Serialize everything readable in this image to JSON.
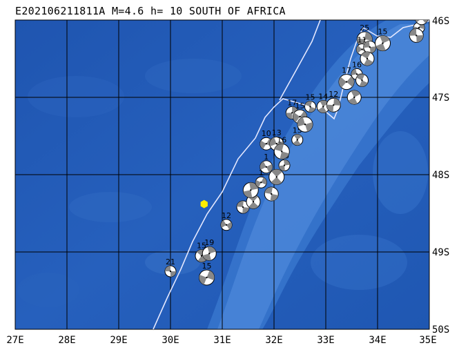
{
  "title": "E202106211811A  M=4.6  h= 10 SOUTH OF AFRICA",
  "colors": {
    "ocean_deep": "#1d4fa8",
    "ocean_mid": "#2a62c0",
    "ocean_shallow": "#4a86d8",
    "grid": "#000000",
    "plate_boundary": "#e8e8ff",
    "epicenter": "#ffee00",
    "beachball_fill": "#888888"
  },
  "axes": {
    "x_ticks": [
      "27E",
      "28E",
      "29E",
      "30E",
      "31E",
      "32E",
      "33E",
      "34E",
      "35E"
    ],
    "y_ticks": [
      "46S",
      "47S",
      "48S",
      "49S",
      "50S"
    ]
  },
  "epicenter": {
    "lon": 30.65,
    "lat": -48.38,
    "icon": "yellow-hexagon"
  },
  "mechanisms": [
    {
      "lon": 30.0,
      "lat": -49.25,
      "label": "21"
    },
    {
      "lon": 30.6,
      "lat": -49.05,
      "label": "15"
    },
    {
      "lon": 30.75,
      "lat": -49.02,
      "label": "19"
    },
    {
      "lon": 30.7,
      "lat": -49.33,
      "label": "15"
    },
    {
      "lon": 31.08,
      "lat": -48.65,
      "label": "12"
    },
    {
      "lon": 31.4,
      "lat": -48.42,
      "label": ""
    },
    {
      "lon": 31.6,
      "lat": -48.35,
      "label": ""
    },
    {
      "lon": 31.55,
      "lat": -48.2,
      "label": ""
    },
    {
      "lon": 31.75,
      "lat": -48.1,
      "label": "1"
    },
    {
      "lon": 31.85,
      "lat": -47.9,
      "label": "1"
    },
    {
      "lon": 31.95,
      "lat": -48.25,
      "label": ""
    },
    {
      "lon": 32.05,
      "lat": -48.03,
      "label": ""
    },
    {
      "lon": 32.2,
      "lat": -47.88,
      "label": "10"
    },
    {
      "lon": 31.85,
      "lat": -47.6,
      "label": "10"
    },
    {
      "lon": 32.05,
      "lat": -47.6,
      "label": "13"
    },
    {
      "lon": 32.15,
      "lat": -47.7,
      "label": "16"
    },
    {
      "lon": 32.45,
      "lat": -47.55,
      "label": "15"
    },
    {
      "lon": 32.35,
      "lat": -47.2,
      "label": "17"
    },
    {
      "lon": 32.5,
      "lat": -47.25,
      "label": "15"
    },
    {
      "lon": 32.6,
      "lat": -47.35,
      "label": ""
    },
    {
      "lon": 32.7,
      "lat": -47.12,
      "label": "15"
    },
    {
      "lon": 32.95,
      "lat": -47.12,
      "label": "14"
    },
    {
      "lon": 33.15,
      "lat": -47.1,
      "label": "12"
    },
    {
      "lon": 33.4,
      "lat": -46.8,
      "label": "17"
    },
    {
      "lon": 33.6,
      "lat": -46.7,
      "label": "16"
    },
    {
      "lon": 33.7,
      "lat": -46.78,
      "label": ""
    },
    {
      "lon": 33.55,
      "lat": -47.0,
      "label": ""
    },
    {
      "lon": 33.75,
      "lat": -46.25,
      "label": "25"
    },
    {
      "lon": 33.7,
      "lat": -46.38,
      "label": "11"
    },
    {
      "lon": 33.85,
      "lat": -46.35,
      "label": ""
    },
    {
      "lon": 33.8,
      "lat": -46.5,
      "label": ""
    },
    {
      "lon": 34.1,
      "lat": -46.3,
      "label": "15"
    },
    {
      "lon": 34.8,
      "lat": -46.1,
      "label": "13"
    },
    {
      "lon": 34.85,
      "lat": -45.98,
      "label": "16"
    },
    {
      "lon": 34.75,
      "lat": -46.2,
      "label": ""
    }
  ]
}
